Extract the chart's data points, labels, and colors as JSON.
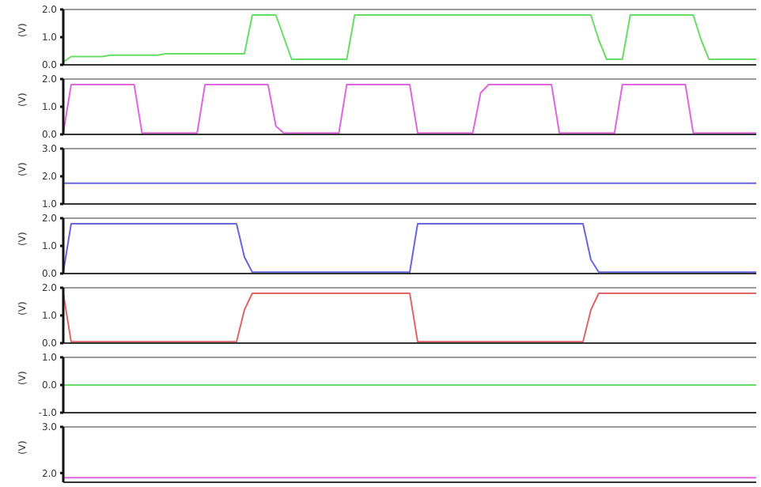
{
  "chart_data": [
    {
      "type": "line",
      "ylabel": "(V)",
      "tick_labels": "y",
      "categories": [
        null,
        null,
        null,
        null,
        null,
        null,
        null,
        null,
        null,
        null,
        null,
        null,
        null,
        null,
        null,
        null,
        null,
        null,
        null,
        null,
        null,
        null,
        null,
        null,
        null,
        null,
        null,
        null,
        null,
        null,
        null,
        null,
        null,
        null,
        null,
        null,
        null,
        null,
        null,
        null,
        null,
        null,
        null,
        null,
        null,
        null,
        null,
        null,
        null,
        null,
        null,
        null,
        null,
        null,
        null,
        null,
        null,
        null,
        null,
        null,
        null,
        null,
        null,
        null,
        null,
        null,
        null,
        null,
        null,
        null,
        null,
        null,
        null,
        null,
        null,
        null,
        null,
        null,
        null,
        null,
        null,
        null,
        null,
        null,
        null,
        null,
        null,
        null,
        null
      ],
      "ylim": [
        0,
        2
      ],
      "yticks": [
        {
          "value": 0,
          "label": "0.0"
        },
        {
          "value": 1,
          "label": "1.0"
        },
        {
          "value": 2,
          "label": "2.0"
        }
      ],
      "series": [
        {
          "color": "#66dd66",
          "values": [
            0.1,
            0.3,
            0.3,
            0.3,
            0.3,
            0.3,
            0.35,
            0.35,
            0.35,
            0.35,
            0.35,
            0.35,
            0.35,
            0.4,
            0.4,
            0.4,
            0.4,
            0.4,
            0.4,
            0.4,
            0.4,
            0.4,
            0.4,
            0.4,
            1.8,
            1.8,
            1.8,
            1.8,
            1.0,
            0.2,
            0.2,
            0.2,
            0.2,
            0.2,
            0.2,
            0.2,
            0.2,
            1.8,
            1.8,
            1.8,
            1.8,
            1.8,
            1.8,
            1.8,
            1.8,
            1.8,
            1.8,
            1.8,
            1.8,
            1.8,
            1.8,
            1.8,
            1.8,
            1.8,
            1.8,
            1.8,
            1.8,
            1.8,
            1.8,
            1.8,
            1.8,
            1.8,
            1.8,
            1.8,
            1.8,
            1.8,
            1.8,
            1.8,
            0.9,
            0.2,
            0.2,
            0.2,
            1.8,
            1.8,
            1.8,
            1.8,
            1.8,
            1.8,
            1.8,
            1.8,
            1.8,
            0.9,
            0.2,
            0.2,
            0.2,
            0.2,
            0.2,
            0.2,
            0.2
          ]
        }
      ]
    },
    {
      "type": "line",
      "ylabel": "(V)",
      "tick_labels": "y",
      "categories": [
        null,
        null,
        null,
        null,
        null,
        null,
        null,
        null,
        null,
        null,
        null,
        null,
        null,
        null,
        null,
        null,
        null,
        null,
        null,
        null,
        null,
        null,
        null,
        null,
        null,
        null,
        null,
        null,
        null,
        null,
        null,
        null,
        null,
        null,
        null,
        null,
        null,
        null,
        null,
        null,
        null,
        null,
        null,
        null,
        null,
        null,
        null,
        null,
        null,
        null,
        null,
        null,
        null,
        null,
        null,
        null,
        null,
        null,
        null,
        null,
        null,
        null,
        null,
        null,
        null,
        null,
        null,
        null,
        null,
        null,
        null,
        null,
        null,
        null,
        null,
        null,
        null,
        null,
        null,
        null,
        null,
        null,
        null,
        null,
        null,
        null,
        null,
        null,
        null
      ],
      "ylim": [
        0,
        2
      ],
      "yticks": [
        {
          "value": 0,
          "label": "0.0"
        },
        {
          "value": 1,
          "label": "1.0"
        },
        {
          "value": 2,
          "label": "2.0"
        }
      ],
      "series": [
        {
          "color": "#e066e0",
          "values": [
            0.05,
            1.8,
            1.8,
            1.8,
            1.8,
            1.8,
            1.8,
            1.8,
            1.8,
            1.8,
            0.05,
            0.05,
            0.05,
            0.05,
            0.05,
            0.05,
            0.05,
            0.05,
            1.8,
            1.8,
            1.8,
            1.8,
            1.8,
            1.8,
            1.8,
            1.8,
            1.8,
            0.3,
            0.05,
            0.05,
            0.05,
            0.05,
            0.05,
            0.05,
            0.05,
            0.05,
            1.8,
            1.8,
            1.8,
            1.8,
            1.8,
            1.8,
            1.8,
            1.8,
            1.8,
            0.05,
            0.05,
            0.05,
            0.05,
            0.05,
            0.05,
            0.05,
            0.05,
            1.5,
            1.8,
            1.8,
            1.8,
            1.8,
            1.8,
            1.8,
            1.8,
            1.8,
            1.8,
            0.05,
            0.05,
            0.05,
            0.05,
            0.05,
            0.05,
            0.05,
            0.05,
            1.8,
            1.8,
            1.8,
            1.8,
            1.8,
            1.8,
            1.8,
            1.8,
            1.8,
            0.05,
            0.05,
            0.05,
            0.05,
            0.05,
            0.05,
            0.05,
            0.05,
            0.05
          ]
        }
      ]
    },
    {
      "type": "line",
      "ylabel": "(V)",
      "tick_labels": "y",
      "categories": [
        null,
        null,
        null,
        null,
        null,
        null,
        null,
        null,
        null,
        null,
        null,
        null,
        null,
        null,
        null,
        null,
        null,
        null,
        null,
        null,
        null,
        null,
        null,
        null,
        null,
        null,
        null,
        null,
        null,
        null,
        null,
        null,
        null,
        null,
        null,
        null,
        null,
        null,
        null,
        null,
        null,
        null,
        null,
        null,
        null,
        null,
        null,
        null,
        null,
        null,
        null,
        null,
        null,
        null,
        null,
        null,
        null,
        null,
        null,
        null,
        null,
        null,
        null,
        null,
        null,
        null,
        null,
        null,
        null,
        null,
        null,
        null,
        null,
        null,
        null,
        null,
        null,
        null,
        null,
        null,
        null,
        null,
        null,
        null,
        null,
        null,
        null,
        null,
        null
      ],
      "ylim": [
        1,
        3
      ],
      "yticks": [
        {
          "value": 1,
          "label": "1.0"
        },
        {
          "value": 2,
          "label": "2.0"
        },
        {
          "value": 3,
          "label": "3.0"
        }
      ],
      "series": [
        {
          "color": "#6666dd",
          "values": [
            1.75,
            1.75,
            1.75,
            1.75,
            1.75,
            1.75,
            1.75,
            1.75,
            1.75,
            1.75,
            1.75,
            1.75,
            1.75,
            1.75,
            1.75,
            1.75,
            1.75,
            1.75,
            1.75,
            1.75,
            1.75,
            1.75,
            1.75,
            1.75,
            1.75,
            1.75,
            1.75,
            1.75,
            1.75,
            1.75,
            1.75,
            1.75,
            1.75,
            1.75,
            1.75,
            1.75,
            1.75,
            1.75,
            1.75,
            1.75,
            1.75,
            1.75,
            1.75,
            1.75,
            1.75,
            1.75,
            1.75,
            1.75,
            1.75,
            1.75,
            1.75,
            1.75,
            1.75,
            1.75,
            1.75,
            1.75,
            1.75,
            1.75,
            1.75,
            1.75,
            1.75,
            1.75,
            1.75,
            1.75,
            1.75,
            1.75,
            1.75,
            1.75,
            1.75,
            1.75,
            1.75,
            1.75,
            1.75,
            1.75,
            1.75,
            1.75,
            1.75,
            1.75,
            1.75,
            1.75,
            1.75,
            1.75,
            1.75,
            1.75,
            1.75,
            1.75,
            1.75,
            1.75,
            1.75
          ]
        }
      ]
    },
    {
      "type": "line",
      "ylabel": "(V)",
      "tick_labels": "y",
      "categories": [
        null,
        null,
        null,
        null,
        null,
        null,
        null,
        null,
        null,
        null,
        null,
        null,
        null,
        null,
        null,
        null,
        null,
        null,
        null,
        null,
        null,
        null,
        null,
        null,
        null,
        null,
        null,
        null,
        null,
        null,
        null,
        null,
        null,
        null,
        null,
        null,
        null,
        null,
        null,
        null,
        null,
        null,
        null,
        null,
        null,
        null,
        null,
        null,
        null,
        null,
        null,
        null,
        null,
        null,
        null,
        null,
        null,
        null,
        null,
        null,
        null,
        null,
        null,
        null,
        null,
        null,
        null,
        null,
        null,
        null,
        null,
        null,
        null,
        null,
        null,
        null,
        null,
        null,
        null,
        null,
        null,
        null,
        null,
        null,
        null,
        null,
        null,
        null,
        null
      ],
      "ylim": [
        0,
        2
      ],
      "yticks": [
        {
          "value": 0,
          "label": "0.0"
        },
        {
          "value": 1,
          "label": "1.0"
        },
        {
          "value": 2,
          "label": "2.0"
        }
      ],
      "series": [
        {
          "color": "#6666dd",
          "values": [
            0.05,
            1.8,
            1.8,
            1.8,
            1.8,
            1.8,
            1.8,
            1.8,
            1.8,
            1.8,
            1.8,
            1.8,
            1.8,
            1.8,
            1.8,
            1.8,
            1.8,
            1.8,
            1.8,
            1.8,
            1.8,
            1.8,
            1.8,
            0.6,
            0.05,
            0.05,
            0.05,
            0.05,
            0.05,
            0.05,
            0.05,
            0.05,
            0.05,
            0.05,
            0.05,
            0.05,
            0.05,
            0.05,
            0.05,
            0.05,
            0.05,
            0.05,
            0.05,
            0.05,
            0.05,
            1.8,
            1.8,
            1.8,
            1.8,
            1.8,
            1.8,
            1.8,
            1.8,
            1.8,
            1.8,
            1.8,
            1.8,
            1.8,
            1.8,
            1.8,
            1.8,
            1.8,
            1.8,
            1.8,
            1.8,
            1.8,
            1.8,
            0.5,
            0.05,
            0.05,
            0.05,
            0.05,
            0.05,
            0.05,
            0.05,
            0.05,
            0.05,
            0.05,
            0.05,
            0.05,
            0.05,
            0.05,
            0.05,
            0.05,
            0.05,
            0.05,
            0.05,
            0.05,
            0.05
          ]
        }
      ]
    },
    {
      "type": "line",
      "ylabel": "(V)",
      "tick_labels": "y",
      "categories": [
        null,
        null,
        null,
        null,
        null,
        null,
        null,
        null,
        null,
        null,
        null,
        null,
        null,
        null,
        null,
        null,
        null,
        null,
        null,
        null,
        null,
        null,
        null,
        null,
        null,
        null,
        null,
        null,
        null,
        null,
        null,
        null,
        null,
        null,
        null,
        null,
        null,
        null,
        null,
        null,
        null,
        null,
        null,
        null,
        null,
        null,
        null,
        null,
        null,
        null,
        null,
        null,
        null,
        null,
        null,
        null,
        null,
        null,
        null,
        null,
        null,
        null,
        null,
        null,
        null,
        null,
        null,
        null,
        null,
        null,
        null,
        null,
        null,
        null,
        null,
        null,
        null,
        null,
        null,
        null,
        null,
        null,
        null,
        null,
        null,
        null,
        null,
        null,
        null
      ],
      "ylim": [
        0,
        2
      ],
      "yticks": [
        {
          "value": 0,
          "label": "0.0"
        },
        {
          "value": 1,
          "label": "1.0"
        },
        {
          "value": 2,
          "label": "2.0"
        }
      ],
      "series": [
        {
          "color": "#e06666",
          "values": [
            1.8,
            0.05,
            0.05,
            0.05,
            0.05,
            0.05,
            0.05,
            0.05,
            0.05,
            0.05,
            0.05,
            0.05,
            0.05,
            0.05,
            0.05,
            0.05,
            0.05,
            0.05,
            0.05,
            0.05,
            0.05,
            0.05,
            0.05,
            1.2,
            1.8,
            1.8,
            1.8,
            1.8,
            1.8,
            1.8,
            1.8,
            1.8,
            1.8,
            1.8,
            1.8,
            1.8,
            1.8,
            1.8,
            1.8,
            1.8,
            1.8,
            1.8,
            1.8,
            1.8,
            1.8,
            0.05,
            0.05,
            0.05,
            0.05,
            0.05,
            0.05,
            0.05,
            0.05,
            0.05,
            0.05,
            0.05,
            0.05,
            0.05,
            0.05,
            0.05,
            0.05,
            0.05,
            0.05,
            0.05,
            0.05,
            0.05,
            0.05,
            1.2,
            1.8,
            1.8,
            1.8,
            1.8,
            1.8,
            1.8,
            1.8,
            1.8,
            1.8,
            1.8,
            1.8,
            1.8,
            1.8,
            1.8,
            1.8,
            1.8,
            1.8,
            1.8,
            1.8,
            1.8,
            1.8
          ]
        }
      ]
    },
    {
      "type": "line",
      "ylabel": "(V)",
      "tick_labels": "y",
      "categories": [
        null,
        null,
        null,
        null,
        null,
        null,
        null,
        null,
        null,
        null,
        null,
        null,
        null,
        null,
        null,
        null,
        null,
        null,
        null,
        null,
        null,
        null,
        null,
        null,
        null,
        null,
        null,
        null,
        null,
        null,
        null,
        null,
        null,
        null,
        null,
        null,
        null,
        null,
        null,
        null,
        null,
        null,
        null,
        null,
        null,
        null,
        null,
        null,
        null,
        null,
        null,
        null,
        null,
        null,
        null,
        null,
        null,
        null,
        null,
        null,
        null,
        null,
        null,
        null,
        null,
        null,
        null,
        null,
        null,
        null,
        null,
        null,
        null,
        null,
        null,
        null,
        null,
        null,
        null,
        null,
        null,
        null,
        null,
        null,
        null,
        null,
        null,
        null,
        null
      ],
      "ylim": [
        -1,
        1
      ],
      "yticks": [
        {
          "value": -1,
          "label": "-1.0"
        },
        {
          "value": 0,
          "label": "0.0"
        },
        {
          "value": 1,
          "label": "1.0"
        }
      ],
      "series": [
        {
          "color": "#66dd66",
          "values": [
            0,
            0,
            0,
            0,
            0,
            0,
            0,
            0,
            0,
            0,
            0,
            0,
            0,
            0,
            0,
            0,
            0,
            0,
            0,
            0,
            0,
            0,
            0,
            0,
            0,
            0,
            0,
            0,
            0,
            0,
            0,
            0,
            0,
            0,
            0,
            0,
            0,
            0,
            0,
            0,
            0,
            0,
            0,
            0,
            0,
            0,
            0,
            0,
            0,
            0,
            0,
            0,
            0,
            0,
            0,
            0,
            0,
            0,
            0,
            0,
            0,
            0,
            0,
            0,
            0,
            0,
            0,
            0,
            0,
            0,
            0,
            0,
            0,
            0,
            0,
            0,
            0,
            0,
            0,
            0,
            0,
            0,
            0,
            0,
            0,
            0,
            0,
            0,
            0
          ]
        }
      ]
    },
    {
      "type": "line",
      "ylabel": "(V)",
      "tick_labels": "y",
      "categories": [
        null,
        null,
        null,
        null,
        null,
        null,
        null,
        null,
        null,
        null,
        null,
        null,
        null,
        null,
        null,
        null,
        null,
        null,
        null,
        null,
        null,
        null,
        null,
        null,
        null,
        null,
        null,
        null,
        null,
        null,
        null,
        null,
        null,
        null,
        null,
        null,
        null,
        null,
        null,
        null,
        null,
        null,
        null,
        null,
        null,
        null,
        null,
        null,
        null,
        null,
        null,
        null,
        null,
        null,
        null,
        null,
        null,
        null,
        null,
        null,
        null,
        null,
        null,
        null,
        null,
        null,
        null,
        null,
        null,
        null,
        null,
        null,
        null,
        null,
        null,
        null,
        null,
        null,
        null,
        null,
        null,
        null,
        null,
        null,
        null,
        null,
        null,
        null,
        null
      ],
      "ylim": [
        1.8,
        3
      ],
      "yticks": [
        {
          "value": 2,
          "label": "2.0"
        },
        {
          "value": 3,
          "label": "3.0"
        }
      ],
      "series": [
        {
          "color": "#e066e0",
          "values": [
            1.9,
            1.9,
            1.9,
            1.9,
            1.9,
            1.9,
            1.9,
            1.9,
            1.9,
            1.9,
            1.9,
            1.9,
            1.9,
            1.9,
            1.9,
            1.9,
            1.9,
            1.9,
            1.9,
            1.9,
            1.9,
            1.9,
            1.9,
            1.9,
            1.9,
            1.9,
            1.9,
            1.9,
            1.9,
            1.9,
            1.9,
            1.9,
            1.9,
            1.9,
            1.9,
            1.9,
            1.9,
            1.9,
            1.9,
            1.9,
            1.9,
            1.9,
            1.9,
            1.9,
            1.9,
            1.9,
            1.9,
            1.9,
            1.9,
            1.9,
            1.9,
            1.9,
            1.9,
            1.9,
            1.9,
            1.9,
            1.9,
            1.9,
            1.9,
            1.9,
            1.9,
            1.9,
            1.9,
            1.9,
            1.9,
            1.9,
            1.9,
            1.9,
            1.9,
            1.9,
            1.9,
            1.9,
            1.9,
            1.9,
            1.9,
            1.9,
            1.9,
            1.9,
            1.9,
            1.9,
            1.9,
            1.9,
            1.9,
            1.9,
            1.9,
            1.9,
            1.9,
            1.9,
            1.9
          ]
        }
      ]
    }
  ]
}
